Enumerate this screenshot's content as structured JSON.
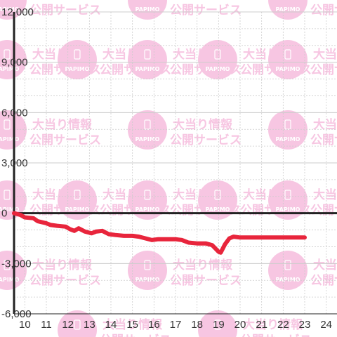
{
  "watermark": {
    "brand": "PAPIMO",
    "line1": "大当り情報",
    "line2": "公開サービス",
    "color": "#f7c6e2"
  },
  "colors": {
    "series": "#e8253c",
    "axis": "#222222",
    "grid_major": "#cccccc",
    "grid_minor": "#cccccc",
    "background": "#ffffff"
  },
  "chart_data": {
    "type": "line",
    "title": "",
    "xlabel": "",
    "ylabel": "",
    "xlim": [
      9.5,
      24.5
    ],
    "ylim": [
      -6000,
      12000
    ],
    "x_ticks": [
      10,
      11,
      12,
      13,
      14,
      15,
      16,
      17,
      18,
      19,
      20,
      21,
      22,
      23,
      24
    ],
    "x_tick_labels": [
      "10",
      "11",
      "12",
      "13",
      "14",
      "15",
      "16",
      "17",
      "18",
      "19",
      "20",
      "21",
      "22",
      "23",
      "24"
    ],
    "y_ticks": [
      12000,
      9000,
      6000,
      3000,
      0,
      -3000,
      -6000
    ],
    "y_tick_labels": [
      "12,000",
      "9,000",
      "6,000",
      "3,000",
      "0",
      "-3,000",
      "-6,000"
    ],
    "grid": true,
    "series": [
      {
        "values": [
          [
            9.5,
            0
          ],
          [
            9.8,
            -100
          ],
          [
            10.0,
            -250
          ],
          [
            10.4,
            -300
          ],
          [
            10.6,
            -480
          ],
          [
            11.0,
            -600
          ],
          [
            11.2,
            -700
          ],
          [
            11.5,
            -750
          ],
          [
            11.9,
            -800
          ],
          [
            12.1,
            -950
          ],
          [
            12.3,
            -1050
          ],
          [
            12.5,
            -900
          ],
          [
            12.8,
            -1100
          ],
          [
            13.1,
            -1200
          ],
          [
            13.3,
            -1100
          ],
          [
            13.6,
            -1050
          ],
          [
            13.9,
            -1250
          ],
          [
            14.2,
            -1300
          ],
          [
            14.6,
            -1350
          ],
          [
            15.0,
            -1350
          ],
          [
            15.3,
            -1400
          ],
          [
            15.6,
            -1500
          ],
          [
            15.9,
            -1600
          ],
          [
            16.2,
            -1550
          ],
          [
            16.6,
            -1550
          ],
          [
            17.0,
            -1550
          ],
          [
            17.3,
            -1600
          ],
          [
            17.6,
            -1750
          ],
          [
            18.0,
            -1800
          ],
          [
            18.4,
            -1800
          ],
          [
            18.7,
            -1900
          ],
          [
            19.0,
            -2300
          ],
          [
            19.1,
            -2350
          ],
          [
            19.3,
            -1850
          ],
          [
            19.5,
            -1500
          ],
          [
            19.7,
            -1400
          ],
          [
            20.0,
            -1450
          ],
          [
            20.5,
            -1450
          ],
          [
            21.5,
            -1450
          ],
          [
            22.5,
            -1450
          ],
          [
            23.0,
            -1450
          ]
        ]
      }
    ]
  }
}
